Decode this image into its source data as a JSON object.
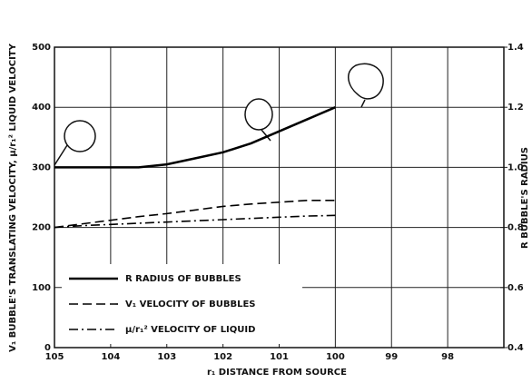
{
  "chart_data": {
    "type": "line",
    "x_label": "r₁  DISTANCE FROM SOURCE",
    "y_label": "V₁ BUBBLE'S TRANSLATING VELOCITY, μ/r₁² LIQUID VELOCITY",
    "y2_label": "R  BUBBLE'S  RADIUS",
    "x": [
      105,
      104.5,
      104,
      103.5,
      103,
      102.5,
      102,
      101.5,
      101,
      100.5,
      100
    ],
    "xlim": [
      105,
      97
    ],
    "xticks": [
      105,
      104,
      103,
      102,
      101,
      100,
      99,
      98
    ],
    "ylim": [
      0,
      500
    ],
    "yticks": [
      0,
      100,
      200,
      300,
      400,
      500
    ],
    "y2lim": [
      0.4,
      1.4
    ],
    "y2ticks": [
      0.4,
      0.6,
      0.8,
      {
        "value": 1,
        "label": "1.0"
      },
      1.2,
      1.4
    ],
    "grid": true,
    "legend": "lower left",
    "series": [
      {
        "name": "R  RADIUS OF BUBBLES",
        "color": "#000",
        "style": "solid",
        "axis": "y2",
        "values": [
          1.0,
          1.0,
          1.0,
          1.0,
          1.01,
          1.03,
          1.05,
          1.08,
          1.12,
          1.16,
          1.2
        ]
      },
      {
        "name": "V₁  VELOCITY OF BUBBLES",
        "color": "#000",
        "style": "dashed",
        "values": [
          200,
          206,
          212,
          218,
          223,
          229,
          235,
          239,
          242,
          245,
          245
        ]
      },
      {
        "name": "μ/r₁²  VELOCITY OF LIQUID",
        "color": "#000",
        "style": "dashdot",
        "values": [
          200,
          203,
          205,
          207,
          209,
          211,
          213,
          215,
          217,
          219,
          220
        ]
      }
    ]
  }
}
